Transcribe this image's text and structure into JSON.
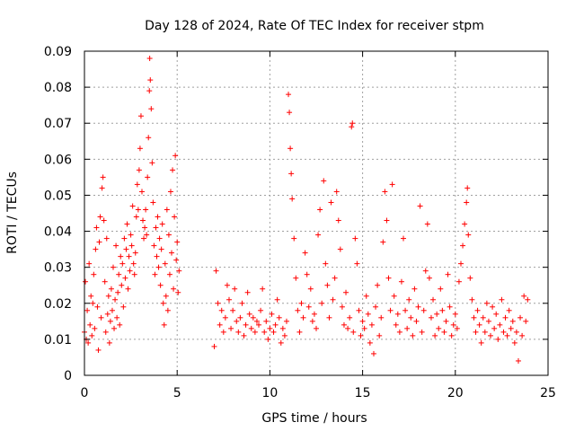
{
  "chart_data": {
    "type": "scatter",
    "title": "Day 128 of 2024, Rate Of TEC Index for receiver stpm",
    "xlabel": "GPS time / hours",
    "ylabel": "ROTI / TECUs",
    "xlim": [
      0,
      25
    ],
    "ylim": [
      0,
      0.09
    ],
    "xticks": [
      "0",
      "5",
      "10",
      "15",
      "20",
      "25"
    ],
    "yticks": [
      "0",
      "0.01",
      "0.02",
      "0.03",
      "0.04",
      "0.05",
      "0.06",
      "0.07",
      "0.08",
      "0.09"
    ],
    "grid": true,
    "marker": "+",
    "color": "#ff0000",
    "points": [
      [
        0.0,
        0.012
      ],
      [
        0.05,
        0.026
      ],
      [
        0.1,
        0.01
      ],
      [
        0.15,
        0.018
      ],
      [
        0.2,
        0.009
      ],
      [
        0.25,
        0.031
      ],
      [
        0.3,
        0.014
      ],
      [
        0.35,
        0.022
      ],
      [
        0.4,
        0.011
      ],
      [
        0.45,
        0.02
      ],
      [
        0.5,
        0.028
      ],
      [
        0.55,
        0.013
      ],
      [
        0.6,
        0.035
      ],
      [
        0.65,
        0.041
      ],
      [
        0.7,
        0.019
      ],
      [
        0.75,
        0.007
      ],
      [
        0.8,
        0.037
      ],
      [
        0.85,
        0.044
      ],
      [
        0.9,
        0.016
      ],
      [
        0.95,
        0.052
      ],
      [
        1.0,
        0.055
      ],
      [
        1.05,
        0.043
      ],
      [
        1.1,
        0.026
      ],
      [
        1.15,
        0.012
      ],
      [
        1.2,
        0.038
      ],
      [
        1.25,
        0.017
      ],
      [
        1.3,
        0.022
      ],
      [
        1.35,
        0.009
      ],
      [
        1.4,
        0.015
      ],
      [
        1.45,
        0.024
      ],
      [
        1.5,
        0.018
      ],
      [
        1.55,
        0.03
      ],
      [
        1.6,
        0.013
      ],
      [
        1.65,
        0.021
      ],
      [
        1.7,
        0.036
      ],
      [
        1.75,
        0.016
      ],
      [
        1.8,
        0.023
      ],
      [
        1.85,
        0.028
      ],
      [
        1.9,
        0.014
      ],
      [
        1.95,
        0.033
      ],
      [
        2.0,
        0.025
      ],
      [
        2.05,
        0.031
      ],
      [
        2.1,
        0.019
      ],
      [
        2.15,
        0.038
      ],
      [
        2.2,
        0.027
      ],
      [
        2.25,
        0.035
      ],
      [
        2.3,
        0.042
      ],
      [
        2.35,
        0.024
      ],
      [
        2.4,
        0.033
      ],
      [
        2.45,
        0.029
      ],
      [
        2.5,
        0.039
      ],
      [
        2.55,
        0.036
      ],
      [
        2.6,
        0.047
      ],
      [
        2.65,
        0.031
      ],
      [
        2.7,
        0.028
      ],
      [
        2.75,
        0.034
      ],
      [
        2.8,
        0.044
      ],
      [
        2.85,
        0.053
      ],
      [
        2.9,
        0.046
      ],
      [
        2.95,
        0.057
      ],
      [
        3.0,
        0.063
      ],
      [
        3.05,
        0.072
      ],
      [
        3.1,
        0.051
      ],
      [
        3.15,
        0.043
      ],
      [
        3.2,
        0.038
      ],
      [
        3.25,
        0.041
      ],
      [
        3.3,
        0.046
      ],
      [
        3.35,
        0.039
      ],
      [
        3.4,
        0.055
      ],
      [
        3.45,
        0.066
      ],
      [
        3.5,
        0.079
      ],
      [
        3.52,
        0.088
      ],
      [
        3.55,
        0.082
      ],
      [
        3.6,
        0.074
      ],
      [
        3.65,
        0.059
      ],
      [
        3.7,
        0.048
      ],
      [
        3.75,
        0.036
      ],
      [
        3.8,
        0.028
      ],
      [
        3.85,
        0.041
      ],
      [
        3.9,
        0.033
      ],
      [
        3.95,
        0.044
      ],
      [
        4.0,
        0.03
      ],
      [
        4.05,
        0.038
      ],
      [
        4.1,
        0.025
      ],
      [
        4.15,
        0.035
      ],
      [
        4.2,
        0.042
      ],
      [
        4.25,
        0.02
      ],
      [
        4.3,
        0.014
      ],
      [
        4.35,
        0.031
      ],
      [
        4.4,
        0.022
      ],
      [
        4.45,
        0.046
      ],
      [
        4.5,
        0.018
      ],
      [
        4.55,
        0.039
      ],
      [
        4.6,
        0.028
      ],
      [
        4.65,
        0.051
      ],
      [
        4.7,
        0.034
      ],
      [
        4.75,
        0.057
      ],
      [
        4.8,
        0.024
      ],
      [
        4.85,
        0.044
      ],
      [
        4.9,
        0.061
      ],
      [
        4.95,
        0.032
      ],
      [
        5.0,
        0.037
      ],
      [
        5.05,
        0.023
      ],
      [
        5.1,
        0.029
      ],
      [
        7.0,
        0.008
      ],
      [
        7.1,
        0.029
      ],
      [
        7.2,
        0.02
      ],
      [
        7.3,
        0.014
      ],
      [
        7.4,
        0.018
      ],
      [
        7.5,
        0.012
      ],
      [
        7.6,
        0.016
      ],
      [
        7.7,
        0.025
      ],
      [
        7.8,
        0.021
      ],
      [
        7.9,
        0.013
      ],
      [
        8.0,
        0.018
      ],
      [
        8.1,
        0.024
      ],
      [
        8.2,
        0.015
      ],
      [
        8.3,
        0.012
      ],
      [
        8.4,
        0.016
      ],
      [
        8.5,
        0.02
      ],
      [
        8.6,
        0.011
      ],
      [
        8.7,
        0.014
      ],
      [
        8.8,
        0.023
      ],
      [
        8.9,
        0.017
      ],
      [
        9.0,
        0.013
      ],
      [
        9.1,
        0.016
      ],
      [
        9.2,
        0.012
      ],
      [
        9.3,
        0.015
      ],
      [
        9.4,
        0.014
      ],
      [
        9.5,
        0.018
      ],
      [
        9.6,
        0.024
      ],
      [
        9.7,
        0.012
      ],
      [
        9.8,
        0.015
      ],
      [
        9.9,
        0.01
      ],
      [
        10.0,
        0.013
      ],
      [
        10.1,
        0.017
      ],
      [
        10.2,
        0.012
      ],
      [
        10.3,
        0.014
      ],
      [
        10.4,
        0.021
      ],
      [
        10.5,
        0.016
      ],
      [
        10.6,
        0.009
      ],
      [
        10.7,
        0.013
      ],
      [
        10.8,
        0.011
      ],
      [
        10.9,
        0.015
      ],
      [
        11.0,
        0.078
      ],
      [
        11.05,
        0.073
      ],
      [
        11.1,
        0.063
      ],
      [
        11.15,
        0.056
      ],
      [
        11.2,
        0.049
      ],
      [
        11.3,
        0.038
      ],
      [
        11.4,
        0.027
      ],
      [
        11.5,
        0.018
      ],
      [
        11.6,
        0.012
      ],
      [
        11.7,
        0.02
      ],
      [
        11.8,
        0.016
      ],
      [
        11.9,
        0.034
      ],
      [
        12.0,
        0.028
      ],
      [
        12.1,
        0.019
      ],
      [
        12.2,
        0.024
      ],
      [
        12.3,
        0.015
      ],
      [
        12.4,
        0.017
      ],
      [
        12.5,
        0.013
      ],
      [
        12.6,
        0.039
      ],
      [
        12.7,
        0.046
      ],
      [
        12.8,
        0.02
      ],
      [
        12.9,
        0.054
      ],
      [
        13.0,
        0.031
      ],
      [
        13.1,
        0.025
      ],
      [
        13.2,
        0.016
      ],
      [
        13.3,
        0.048
      ],
      [
        13.4,
        0.021
      ],
      [
        13.5,
        0.027
      ],
      [
        13.6,
        0.051
      ],
      [
        13.7,
        0.043
      ],
      [
        13.8,
        0.035
      ],
      [
        13.9,
        0.019
      ],
      [
        14.0,
        0.014
      ],
      [
        14.1,
        0.023
      ],
      [
        14.2,
        0.013
      ],
      [
        14.3,
        0.016
      ],
      [
        14.4,
        0.069
      ],
      [
        14.45,
        0.07
      ],
      [
        14.5,
        0.012
      ],
      [
        14.6,
        0.038
      ],
      [
        14.7,
        0.031
      ],
      [
        14.8,
        0.018
      ],
      [
        14.9,
        0.011
      ],
      [
        15.0,
        0.015
      ],
      [
        15.1,
        0.013
      ],
      [
        15.2,
        0.022
      ],
      [
        15.3,
        0.017
      ],
      [
        15.4,
        0.009
      ],
      [
        15.5,
        0.014
      ],
      [
        15.6,
        0.006
      ],
      [
        15.7,
        0.019
      ],
      [
        15.8,
        0.025
      ],
      [
        15.9,
        0.011
      ],
      [
        16.0,
        0.016
      ],
      [
        16.1,
        0.037
      ],
      [
        16.2,
        0.051
      ],
      [
        16.3,
        0.043
      ],
      [
        16.4,
        0.027
      ],
      [
        16.5,
        0.018
      ],
      [
        16.6,
        0.053
      ],
      [
        16.7,
        0.022
      ],
      [
        16.8,
        0.014
      ],
      [
        16.9,
        0.017
      ],
      [
        17.0,
        0.012
      ],
      [
        17.1,
        0.026
      ],
      [
        17.2,
        0.038
      ],
      [
        17.3,
        0.018
      ],
      [
        17.4,
        0.013
      ],
      [
        17.5,
        0.021
      ],
      [
        17.6,
        0.016
      ],
      [
        17.7,
        0.011
      ],
      [
        17.8,
        0.024
      ],
      [
        17.9,
        0.015
      ],
      [
        18.0,
        0.019
      ],
      [
        18.1,
        0.047
      ],
      [
        18.2,
        0.012
      ],
      [
        18.3,
        0.018
      ],
      [
        18.4,
        0.029
      ],
      [
        18.5,
        0.042
      ],
      [
        18.6,
        0.027
      ],
      [
        18.7,
        0.016
      ],
      [
        18.8,
        0.021
      ],
      [
        18.9,
        0.011
      ],
      [
        19.0,
        0.017
      ],
      [
        19.1,
        0.013
      ],
      [
        19.2,
        0.024
      ],
      [
        19.3,
        0.018
      ],
      [
        19.4,
        0.012
      ],
      [
        19.5,
        0.015
      ],
      [
        19.6,
        0.028
      ],
      [
        19.7,
        0.019
      ],
      [
        19.8,
        0.011
      ],
      [
        19.9,
        0.014
      ],
      [
        20.0,
        0.017
      ],
      [
        20.1,
        0.013
      ],
      [
        20.2,
        0.026
      ],
      [
        20.3,
        0.031
      ],
      [
        20.4,
        0.036
      ],
      [
        20.5,
        0.042
      ],
      [
        20.6,
        0.048
      ],
      [
        20.65,
        0.052
      ],
      [
        20.7,
        0.039
      ],
      [
        20.8,
        0.027
      ],
      [
        20.9,
        0.021
      ],
      [
        21.0,
        0.016
      ],
      [
        21.1,
        0.012
      ],
      [
        21.2,
        0.018
      ],
      [
        21.3,
        0.014
      ],
      [
        21.4,
        0.009
      ],
      [
        21.5,
        0.016
      ],
      [
        21.6,
        0.012
      ],
      [
        21.7,
        0.02
      ],
      [
        21.8,
        0.015
      ],
      [
        21.9,
        0.011
      ],
      [
        22.0,
        0.019
      ],
      [
        22.1,
        0.013
      ],
      [
        22.2,
        0.017
      ],
      [
        22.3,
        0.01
      ],
      [
        22.4,
        0.014
      ],
      [
        22.5,
        0.021
      ],
      [
        22.6,
        0.012
      ],
      [
        22.7,
        0.016
      ],
      [
        22.8,
        0.011
      ],
      [
        22.9,
        0.018
      ],
      [
        23.0,
        0.013
      ],
      [
        23.1,
        0.015
      ],
      [
        23.2,
        0.009
      ],
      [
        23.3,
        0.012
      ],
      [
        23.4,
        0.004
      ],
      [
        23.5,
        0.016
      ],
      [
        23.6,
        0.011
      ],
      [
        23.7,
        0.022
      ],
      [
        23.8,
        0.015
      ],
      [
        23.9,
        0.021
      ]
    ]
  }
}
